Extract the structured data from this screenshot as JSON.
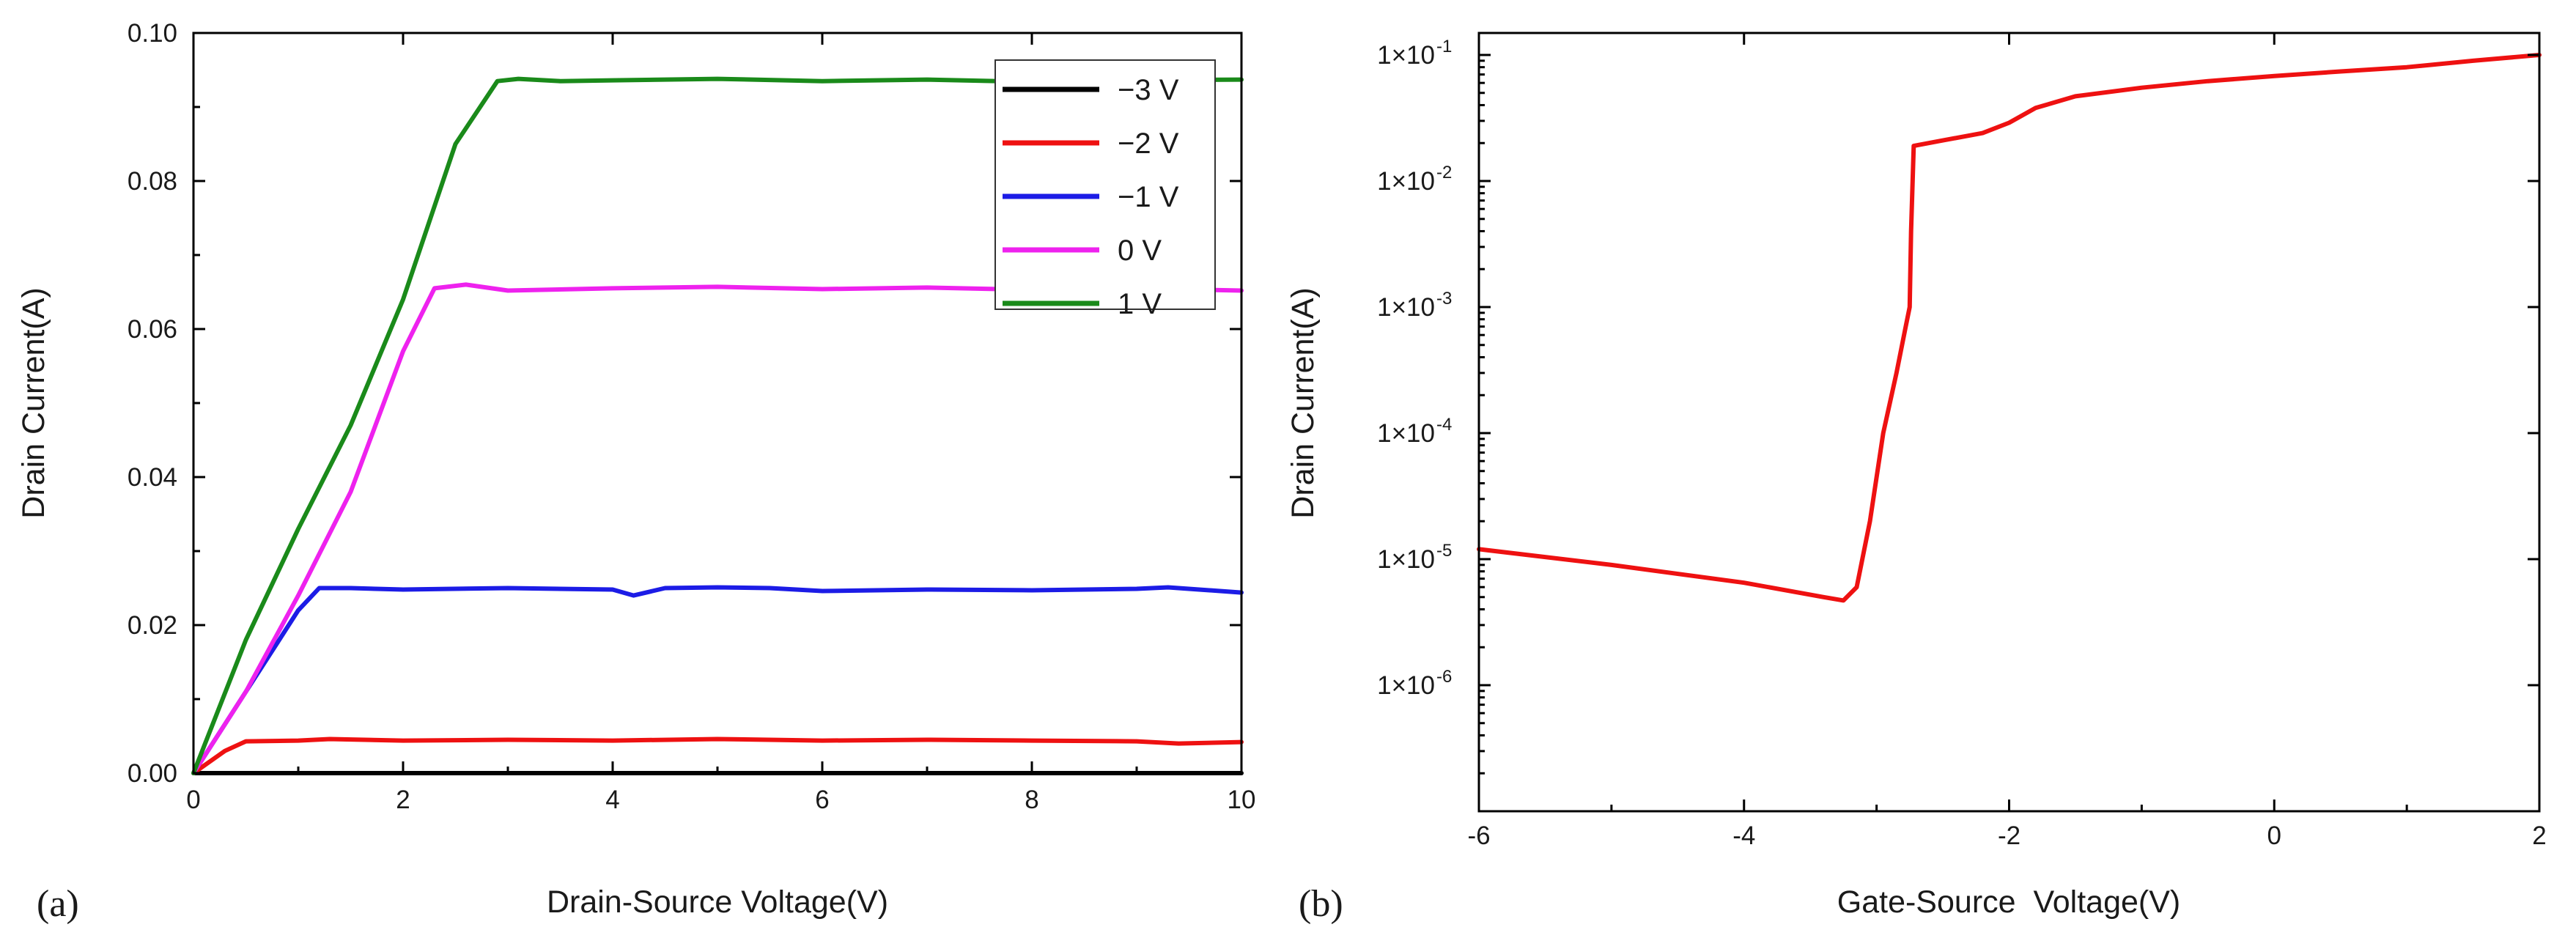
{
  "chart_data": [
    {
      "type": "line",
      "panel_label": "(a)",
      "title": "",
      "xlabel": "Drain-Source Voltage(V)",
      "ylabel": "Drain Current(A)",
      "xlim": [
        0,
        10
      ],
      "ylim": [
        0,
        0.1
      ],
      "xticks": [
        "0",
        "2",
        "4",
        "6",
        "8",
        "10"
      ],
      "yticks": [
        "0.00",
        "0.02",
        "0.04",
        "0.06",
        "0.08",
        "0.10"
      ],
      "legend_position": "top-right",
      "series": [
        {
          "name": "−3 V",
          "color": "#000000",
          "x": [
            0,
            10
          ],
          "y": [
            0,
            0
          ]
        },
        {
          "name": "−2 V",
          "color": "#ee1111",
          "x": [
            0,
            0.3,
            0.5,
            1.0,
            1.3,
            2.0,
            3.0,
            4.0,
            5.0,
            6.0,
            7.0,
            8.0,
            9.0,
            9.4,
            10.0
          ],
          "y": [
            0,
            0.003,
            0.0043,
            0.0044,
            0.0046,
            0.0044,
            0.0045,
            0.0044,
            0.0046,
            0.0044,
            0.0045,
            0.0044,
            0.0043,
            0.004,
            0.0042
          ]
        },
        {
          "name": "−1 V",
          "color": "#1c1ce6",
          "x": [
            0,
            0.5,
            1.0,
            1.2,
            1.5,
            2.0,
            3.0,
            4.0,
            4.2,
            4.5,
            5.0,
            5.5,
            6.0,
            7.0,
            8.0,
            9.0,
            9.3,
            10.0
          ],
          "y": [
            0,
            0.011,
            0.022,
            0.025,
            0.025,
            0.0248,
            0.025,
            0.0248,
            0.024,
            0.025,
            0.0251,
            0.025,
            0.0246,
            0.0248,
            0.0247,
            0.0249,
            0.0251,
            0.0244
          ]
        },
        {
          "name": "0 V",
          "color": "#ee22ee",
          "x": [
            0,
            0.5,
            1.0,
            1.5,
            2.0,
            2.3,
            2.6,
            3.0,
            4.0,
            5.0,
            6.0,
            7.0,
            8.0,
            9.0,
            10.0
          ],
          "y": [
            0,
            0.011,
            0.024,
            0.038,
            0.057,
            0.0655,
            0.066,
            0.0652,
            0.0655,
            0.0657,
            0.0654,
            0.0656,
            0.0653,
            0.0655,
            0.0652
          ]
        },
        {
          "name": "1 V",
          "color": "#1a8a1a",
          "x": [
            0,
            0.5,
            1.0,
            1.5,
            2.0,
            2.5,
            2.9,
            3.1,
            3.5,
            4.0,
            5.0,
            6.0,
            7.0,
            8.0,
            9.0,
            10.0
          ],
          "y": [
            0,
            0.018,
            0.033,
            0.047,
            0.064,
            0.085,
            0.0935,
            0.0938,
            0.0935,
            0.0936,
            0.0938,
            0.0935,
            0.0937,
            0.0934,
            0.0936,
            0.0937
          ]
        }
      ]
    },
    {
      "type": "line",
      "panel_label": "(b)",
      "title": "",
      "xlabel": "Gate-Source  Voltage(V)",
      "ylabel": "Drain Current(A)",
      "xlim": [
        -6,
        2
      ],
      "ylim": [
        1e-07,
        0.1
      ],
      "yscale": "log",
      "xticks": [
        "-6",
        "-4",
        "-2",
        "0",
        "2"
      ],
      "yticks": [
        "1×10",
        "1×10",
        "1×10",
        "1×10",
        "1×10",
        "1×10"
      ],
      "ytick_exponents": [
        "-6",
        "-5",
        "-4",
        "-3",
        "-2",
        "-1"
      ],
      "series": [
        {
          "name": "",
          "color": "#ee1111",
          "x": [
            -6.0,
            -5.0,
            -4.0,
            -3.4,
            -3.25,
            -3.15,
            -3.05,
            -2.95,
            -2.85,
            -2.78,
            -2.75,
            -2.74,
            -2.72,
            -2.5,
            -2.2,
            -2.0,
            -1.8,
            -1.5,
            -1.0,
            -0.5,
            0.0,
            0.5,
            1.0,
            1.5,
            2.0
          ],
          "y": [
            1.2e-05,
            9e-06,
            6.5e-06,
            5e-06,
            4.7e-06,
            6e-06,
            2e-05,
            0.0001,
            0.0003,
            0.0007,
            0.001,
            0.004,
            0.019,
            0.021,
            0.024,
            0.029,
            0.038,
            0.047,
            0.055,
            0.062,
            0.068,
            0.074,
            0.08,
            0.09,
            0.1
          ]
        }
      ]
    }
  ]
}
